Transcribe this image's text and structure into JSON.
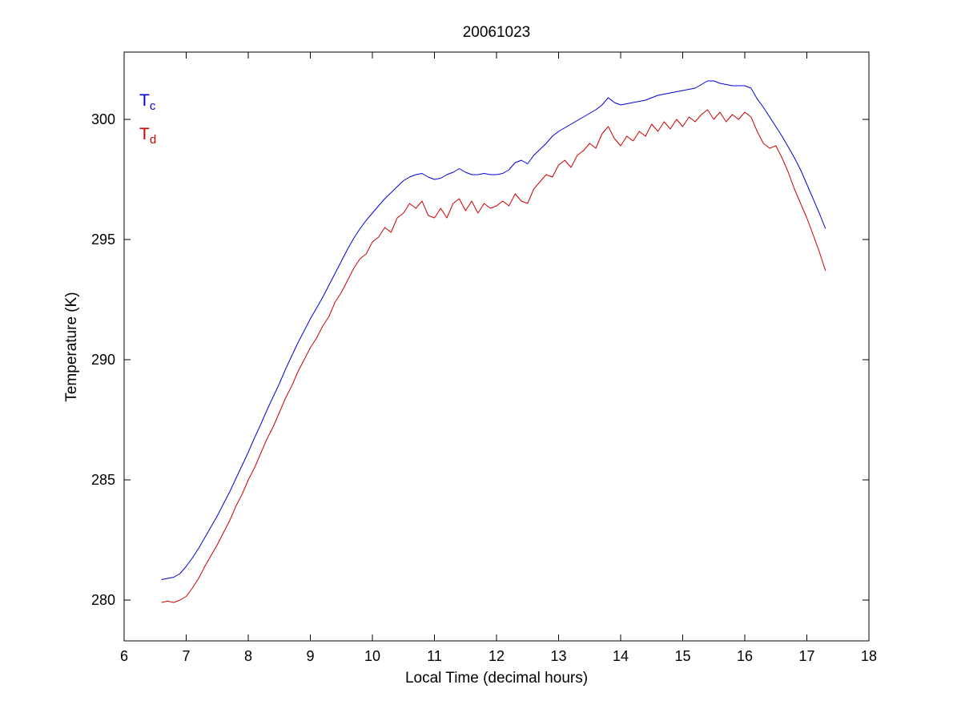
{
  "chart_data": {
    "type": "line",
    "title": "20061023",
    "xlabel": "Local Time (decimal hours)",
    "ylabel": "Temperature (K)",
    "xlim": [
      6,
      18
    ],
    "ylim": [
      278.3,
      302.8
    ],
    "xticks": [
      6,
      7,
      8,
      9,
      10,
      11,
      12,
      13,
      14,
      15,
      16,
      17,
      18
    ],
    "yticks": [
      280,
      285,
      290,
      295,
      300
    ],
    "grid": false,
    "axis_color": "#000000",
    "legend": {
      "position": "top-left-inside",
      "entries": [
        {
          "main": "T",
          "sub": "c",
          "color": "#0000dd"
        },
        {
          "main": "T",
          "sub": "d",
          "color": "#cc0000"
        }
      ]
    },
    "x": [
      6.6,
      6.7,
      6.8,
      6.9,
      7.0,
      7.1,
      7.2,
      7.3,
      7.4,
      7.5,
      7.6,
      7.7,
      7.8,
      7.9,
      8.0,
      8.1,
      8.2,
      8.3,
      8.4,
      8.5,
      8.6,
      8.7,
      8.8,
      8.9,
      9.0,
      9.1,
      9.2,
      9.3,
      9.4,
      9.5,
      9.6,
      9.7,
      9.8,
      9.9,
      10.0,
      10.1,
      10.2,
      10.3,
      10.4,
      10.5,
      10.6,
      10.7,
      10.8,
      10.9,
      11.0,
      11.1,
      11.2,
      11.3,
      11.4,
      11.5,
      11.6,
      11.7,
      11.8,
      11.9,
      12.0,
      12.1,
      12.2,
      12.3,
      12.4,
      12.5,
      12.6,
      12.7,
      12.8,
      12.9,
      13.0,
      13.1,
      13.2,
      13.3,
      13.4,
      13.5,
      13.6,
      13.7,
      13.8,
      13.9,
      14.0,
      14.1,
      14.2,
      14.3,
      14.4,
      14.5,
      14.6,
      14.7,
      14.8,
      14.9,
      15.0,
      15.1,
      15.2,
      15.3,
      15.4,
      15.5,
      15.6,
      15.7,
      15.8,
      15.9,
      16.0,
      16.1,
      16.2,
      16.3,
      16.4,
      16.5,
      16.6,
      16.7,
      16.8,
      16.9,
      17.0,
      17.1,
      17.2,
      17.3
    ],
    "series": [
      {
        "name": "Tc",
        "color": "#0000dd",
        "values": [
          280.85,
          280.9,
          280.95,
          281.1,
          281.4,
          281.75,
          282.15,
          282.6,
          283.05,
          283.5,
          284.0,
          284.5,
          285.05,
          285.6,
          286.15,
          286.75,
          287.3,
          287.9,
          288.45,
          289.0,
          289.6,
          290.15,
          290.7,
          291.2,
          291.7,
          292.15,
          292.6,
          293.1,
          293.6,
          294.1,
          294.6,
          295.05,
          295.45,
          295.8,
          296.1,
          296.4,
          296.7,
          296.95,
          297.2,
          297.45,
          297.6,
          297.7,
          297.75,
          297.6,
          297.5,
          297.55,
          297.7,
          297.8,
          297.95,
          297.8,
          297.7,
          297.7,
          297.75,
          297.7,
          297.7,
          297.75,
          297.9,
          298.2,
          298.3,
          298.15,
          298.5,
          298.75,
          299.0,
          299.3,
          299.5,
          299.65,
          299.8,
          299.95,
          300.1,
          300.25,
          300.4,
          300.6,
          300.9,
          300.7,
          300.6,
          300.65,
          300.7,
          300.75,
          300.8,
          300.9,
          301.0,
          301.05,
          301.1,
          301.15,
          301.2,
          301.25,
          301.3,
          301.45,
          301.6,
          301.6,
          301.5,
          301.45,
          301.4,
          301.4,
          301.4,
          301.3,
          300.85,
          300.5,
          300.1,
          299.7,
          299.3,
          298.85,
          298.4,
          297.9,
          297.3,
          296.7,
          296.1,
          295.45
        ]
      },
      {
        "name": "Td",
        "color": "#cc0000",
        "values": [
          279.9,
          279.95,
          279.9,
          280.0,
          280.15,
          280.5,
          280.9,
          281.4,
          281.85,
          282.3,
          282.8,
          283.3,
          283.9,
          284.4,
          285.0,
          285.5,
          286.1,
          286.7,
          287.2,
          287.8,
          288.4,
          288.9,
          289.5,
          290.0,
          290.5,
          290.9,
          291.4,
          291.8,
          292.4,
          292.8,
          293.3,
          293.8,
          294.2,
          294.4,
          294.9,
          295.1,
          295.5,
          295.3,
          295.9,
          296.1,
          296.5,
          296.3,
          296.6,
          296.0,
          295.9,
          296.3,
          295.9,
          296.5,
          296.7,
          296.2,
          296.6,
          296.1,
          296.5,
          296.3,
          296.4,
          296.6,
          296.4,
          296.9,
          296.6,
          296.5,
          297.1,
          297.4,
          297.7,
          297.6,
          298.1,
          298.3,
          298.0,
          298.5,
          298.7,
          299.0,
          298.8,
          299.4,
          299.7,
          299.2,
          298.9,
          299.3,
          299.1,
          299.5,
          299.3,
          299.8,
          299.5,
          299.9,
          299.6,
          300.0,
          299.7,
          300.1,
          299.9,
          300.2,
          300.4,
          300.0,
          300.3,
          299.9,
          300.2,
          300.0,
          300.3,
          300.1,
          299.5,
          299.0,
          298.8,
          298.9,
          298.4,
          297.8,
          297.1,
          296.5,
          295.9,
          295.2,
          294.5,
          293.7
        ]
      }
    ]
  }
}
